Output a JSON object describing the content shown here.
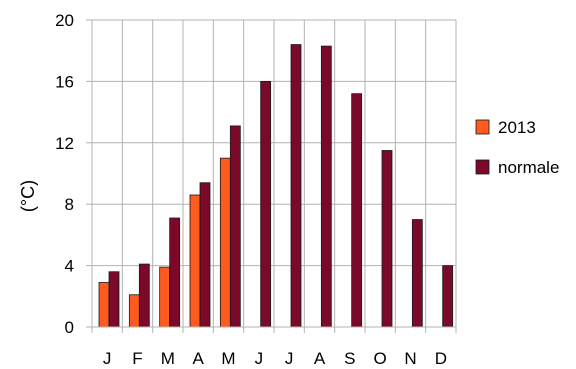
{
  "chart_data": {
    "type": "bar",
    "categories": [
      "J",
      "F",
      "M",
      "A",
      "M",
      "J",
      "J",
      "A",
      "S",
      "O",
      "N",
      "D"
    ],
    "series": [
      {
        "name": "2013",
        "color": "#ff5a1f",
        "values": [
          2.9,
          2.1,
          3.9,
          8.6,
          11.0,
          null,
          null,
          null,
          null,
          null,
          null,
          null
        ]
      },
      {
        "name": "normale",
        "color": "#7b0a2a",
        "values": [
          3.6,
          4.1,
          7.1,
          9.4,
          13.1,
          16.0,
          18.4,
          18.3,
          15.2,
          11.5,
          7.0,
          4.0
        ]
      }
    ],
    "ylabel": "(°C)",
    "ylim": [
      0,
      20
    ],
    "yticks": [
      0,
      4,
      8,
      12,
      16,
      20
    ],
    "grid": true,
    "legend": "right"
  }
}
